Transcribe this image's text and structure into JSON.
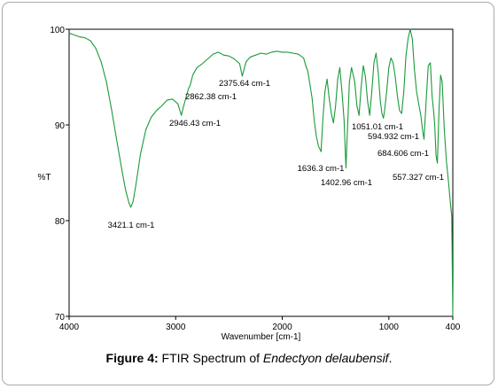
{
  "caption": {
    "label": "Figure 4:",
    "text": " FTIR Spectrum of ",
    "species": "Endectyon delaubensif",
    "end": "."
  },
  "chart_data": {
    "type": "line",
    "title": "",
    "xlabel": "Wavenumber [cm-1]",
    "ylabel": "%T",
    "xlim": [
      4000,
      400
    ],
    "ylim": [
      70,
      100
    ],
    "x_reversed": true,
    "x_ticks": [
      4000,
      3000,
      2000,
      1000,
      400
    ],
    "y_ticks": [
      100,
      90,
      80,
      70
    ],
    "grid": false,
    "line_color": "#1a9a3a",
    "series": [
      {
        "x": [
          4000,
          3950,
          3900,
          3850,
          3800,
          3750,
          3700,
          3650,
          3600,
          3550,
          3500,
          3470,
          3440,
          3421.1,
          3400,
          3370,
          3330,
          3280,
          3230,
          3180,
          3130,
          3080,
          3030,
          2980,
          2946.43,
          2930,
          2900,
          2880,
          2862.38,
          2840,
          2800,
          2750,
          2700,
          2650,
          2600,
          2550,
          2500,
          2450,
          2400,
          2375.64,
          2340,
          2300,
          2250,
          2200,
          2150,
          2100,
          2050,
          2000,
          1950,
          1900,
          1850,
          1800,
          1780,
          1760,
          1740,
          1720,
          1700,
          1680,
          1660,
          1636.3,
          1620,
          1600,
          1580,
          1560,
          1540,
          1520,
          1500,
          1480,
          1460,
          1440,
          1420,
          1402.96,
          1390,
          1370,
          1350,
          1320,
          1300,
          1280,
          1260,
          1240,
          1220,
          1200,
          1180,
          1160,
          1140,
          1120,
          1100,
          1080,
          1065,
          1051.01,
          1040,
          1020,
          1000,
          980,
          960,
          940,
          920,
          900,
          880,
          860,
          840,
          820,
          800,
          780,
          760,
          740,
          720,
          700,
          684.606,
          670,
          650,
          630,
          610,
          594.932,
          580,
          570,
          557.327,
          545,
          530,
          515,
          500,
          480,
          460,
          440,
          420,
          410,
          400
        ],
        "values": [
          99.6,
          99.4,
          99.2,
          99.1,
          98.8,
          98.0,
          96.6,
          94.5,
          91.5,
          88.2,
          85.0,
          83.2,
          81.9,
          81.4,
          82.0,
          84.0,
          87.0,
          89.5,
          90.8,
          91.5,
          92.0,
          92.6,
          92.7,
          92.2,
          91.0,
          91.8,
          93.0,
          93.8,
          94.2,
          95.2,
          96.0,
          96.4,
          96.9,
          97.4,
          97.6,
          97.3,
          97.2,
          96.9,
          96.4,
          95.1,
          96.6,
          97.1,
          97.3,
          97.5,
          97.4,
          97.6,
          97.7,
          97.6,
          97.6,
          97.5,
          97.4,
          97.0,
          96.2,
          95.6,
          94.2,
          92.8,
          90.5,
          88.8,
          87.8,
          87.2,
          90.5,
          93.5,
          94.8,
          92.8,
          91.2,
          90.2,
          92.0,
          94.8,
          96.0,
          93.5,
          90.5,
          85.5,
          89.0,
          94.5,
          96.0,
          94.5,
          92.0,
          91.0,
          94.0,
          96.2,
          95.0,
          92.5,
          91.0,
          93.5,
          96.5,
          97.5,
          95.5,
          92.5,
          91.2,
          90.7,
          91.5,
          93.5,
          96.0,
          97.0,
          96.5,
          95.0,
          93.0,
          91.5,
          91.2,
          93.5,
          97.2,
          99.0,
          100.0,
          99.0,
          95.8,
          93.5,
          92.2,
          91.0,
          89.5,
          88.5,
          92.5,
          96.2,
          96.5,
          93.0,
          91.5,
          90.0,
          86.8,
          86.0,
          91.5,
          95.2,
          94.5,
          89.5,
          86.2,
          84.0,
          81.5,
          80.5,
          70.0
        ]
      }
    ],
    "annotations": [
      {
        "text": "3421.1 cm-1",
        "x": 3421.1
      },
      {
        "text": "2946.43 cm-1",
        "x": 2946.43
      },
      {
        "text": "2862.38 cm-1",
        "x": 2862.38
      },
      {
        "text": "2375.64 cm-1",
        "x": 2375.64
      },
      {
        "text": "1636.3 cm-1",
        "x": 1636.3
      },
      {
        "text": "1402.96 cm-1",
        "x": 1402.96
      },
      {
        "text": "1051.01 cm-1",
        "x": 1051.01
      },
      {
        "text": "594.932 cm-1",
        "x": 594.932
      },
      {
        "text": "684.606 cm-1",
        "x": 684.606
      },
      {
        "text": "557.327 cm-1",
        "x": 557.327
      }
    ]
  }
}
